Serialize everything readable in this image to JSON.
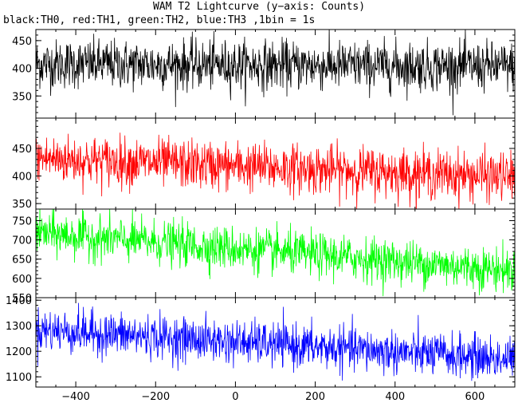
{
  "title": "WAM T2 Lightcurve (y−axis: Counts)",
  "subtitle": "black:TH0, red:TH1, green:TH2, blue:TH3 ,1bin = 1s",
  "chart_data": {
    "type": "line",
    "x": {
      "range": [
        -500,
        700
      ],
      "ticks": [
        -400,
        -200,
        0,
        200,
        400,
        600
      ],
      "tick_labels": [
        "−400",
        "−200",
        "0",
        "200",
        "400",
        "600"
      ]
    },
    "panels": [
      {
        "name": "TH0",
        "color": "#000000",
        "ylim": [
          310,
          470
        ],
        "yticks": [
          350,
          400,
          450
        ],
        "ytick_labels": [
          "350",
          "400",
          "450"
        ],
        "trend": [
          {
            "x": -500,
            "y": 408
          },
          {
            "x": 700,
            "y": 403
          }
        ],
        "noise_sd": 22
      },
      {
        "name": "TH1",
        "color": "#ff0000",
        "ylim": [
          340,
          505
        ],
        "yticks": [
          350,
          400,
          450
        ],
        "ytick_labels": [
          "350",
          "400",
          "450"
        ],
        "trend": [
          {
            "x": -500,
            "y": 432
          },
          {
            "x": 700,
            "y": 398
          }
        ],
        "noise_sd": 22
      },
      {
        "name": "TH2",
        "color": "#00ff00",
        "ylim": [
          550,
          780
        ],
        "yticks": [
          550,
          600,
          650,
          700,
          750
        ],
        "ytick_labels": [
          "550",
          "600",
          "650",
          "700",
          "750"
        ],
        "trend": [
          {
            "x": -500,
            "y": 718
          },
          {
            "x": 700,
            "y": 620
          }
        ],
        "noise_sd": 28
      },
      {
        "name": "TH3",
        "color": "#0000ff",
        "ylim": [
          1060,
          1410
        ],
        "yticks": [
          1100,
          1200,
          1300,
          1400
        ],
        "ytick_labels": [
          "1100",
          "1200",
          "1300",
          "1400"
        ],
        "trend": [
          {
            "x": -500,
            "y": 1285
          },
          {
            "x": 700,
            "y": 1168
          }
        ],
        "noise_sd": 42
      }
    ]
  }
}
